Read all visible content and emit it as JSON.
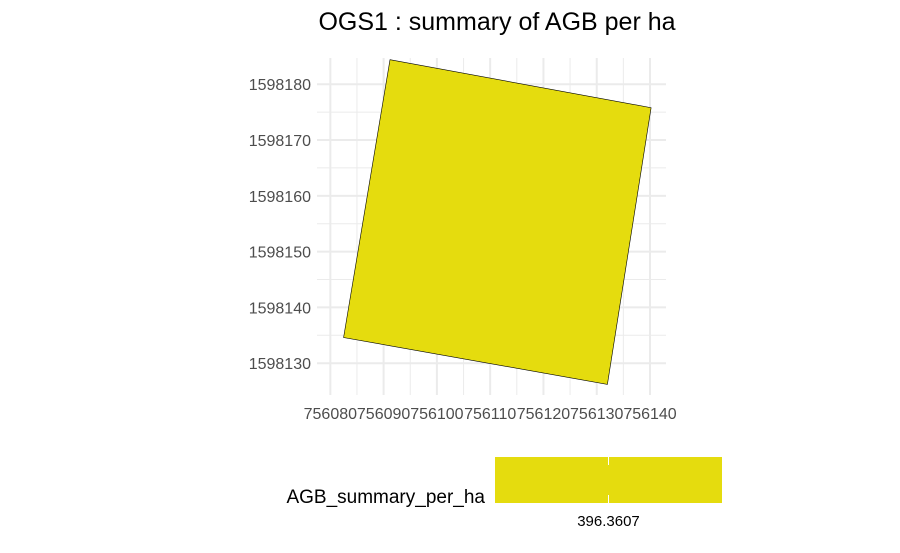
{
  "chart_data": {
    "type": "map",
    "title": "OGS1 : summary of AGB per ha",
    "xlabel": "",
    "ylabel": "",
    "xlim": [
      756077.5,
      756143
    ],
    "ylim": [
      1598124.3,
      1598184.7
    ],
    "x_ticks": [
      756080,
      756090,
      756100,
      756110,
      756120,
      756130,
      756140
    ],
    "x_tick_labels": [
      "756080",
      "756090",
      "756100",
      "756110",
      "756120",
      "756130",
      "756140"
    ],
    "y_ticks": [
      1598130,
      1598140,
      1598150,
      1598160,
      1598170,
      1598180
    ],
    "y_tick_labels": [
      "1598130",
      "1598140",
      "1598150",
      "1598160",
      "1598170",
      "1598180"
    ],
    "grid": true,
    "polygon": {
      "vertices": [
        [
          756091.2,
          1598184.4
        ],
        [
          756140.2,
          1598175.8
        ],
        [
          756132.0,
          1598126.2
        ],
        [
          756082.5,
          1598134.6
        ]
      ],
      "value": 396.3607,
      "fill_color": "#e5dc0e",
      "stroke_color": "#000000"
    },
    "legend": {
      "title": "AGB_summary_per_ha",
      "ticks": [
        396.3607
      ],
      "tick_labels": [
        "396.3607"
      ],
      "color": "#e5dc0e",
      "position": "bottom"
    },
    "colors": {
      "grid": "#ebebeb",
      "tick_text": "#4d4d4d",
      "background": "#ffffff"
    }
  }
}
